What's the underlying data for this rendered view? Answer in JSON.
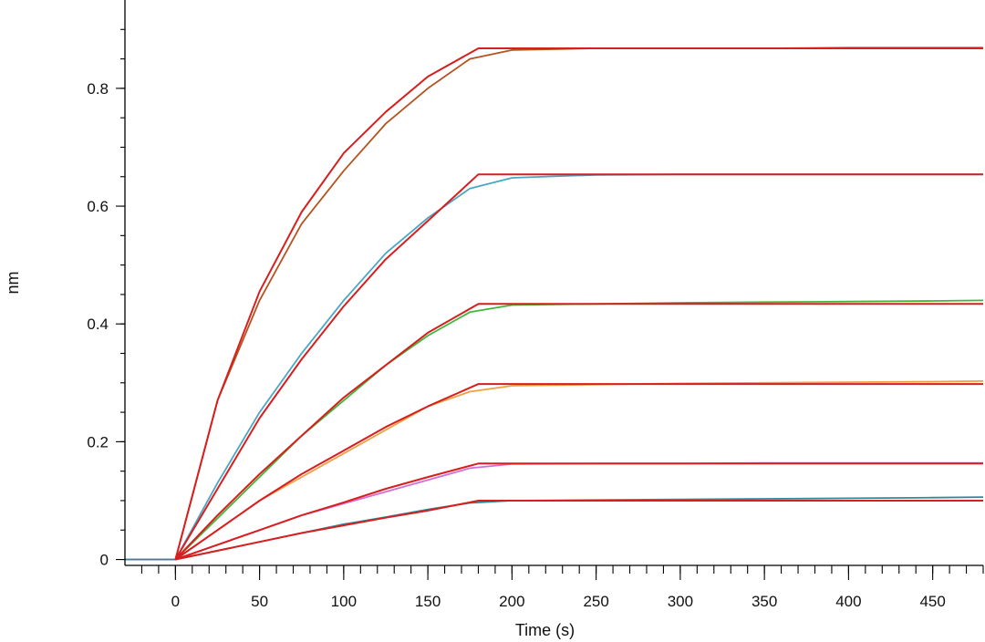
{
  "chart_data": {
    "type": "line",
    "title": "",
    "xlabel": "Time (s)",
    "ylabel": "nm",
    "xlim": [
      -30,
      480
    ],
    "ylim": [
      -0.01,
      0.95
    ],
    "x_ticks": [
      0,
      50,
      100,
      150,
      200,
      250,
      300,
      350,
      400,
      450
    ],
    "x_tick_labels": [
      "0",
      "50",
      "100",
      "150",
      "200",
      "250",
      "300",
      "350",
      "400",
      "450"
    ],
    "y_ticks": [
      0,
      0.2,
      0.4,
      0.6,
      0.8
    ],
    "y_tick_labels": [
      "0",
      "0.2",
      "0.4",
      "0.6",
      "0.8"
    ],
    "grid": false,
    "legend": "none",
    "association_end_s": 180,
    "series": [
      {
        "role": "measured",
        "color": "#b5531f",
        "values": [
          [
            -30,
            0.0
          ],
          [
            0,
            0.0
          ],
          [
            25,
            0.27
          ],
          [
            50,
            0.44
          ],
          [
            75,
            0.57
          ],
          [
            100,
            0.66
          ],
          [
            125,
            0.74
          ],
          [
            150,
            0.8
          ],
          [
            175,
            0.85
          ],
          [
            200,
            0.865
          ],
          [
            250,
            0.868
          ],
          [
            300,
            0.868
          ],
          [
            350,
            0.868
          ],
          [
            400,
            0.869
          ],
          [
            450,
            0.869
          ],
          [
            480,
            0.869
          ]
        ]
      },
      {
        "role": "measured",
        "color": "#4aa6c4",
        "values": [
          [
            -30,
            0.0
          ],
          [
            0,
            0.0
          ],
          [
            25,
            0.13
          ],
          [
            50,
            0.25
          ],
          [
            75,
            0.35
          ],
          [
            100,
            0.44
          ],
          [
            125,
            0.52
          ],
          [
            150,
            0.58
          ],
          [
            175,
            0.63
          ],
          [
            200,
            0.648
          ],
          [
            250,
            0.653
          ],
          [
            300,
            0.654
          ],
          [
            350,
            0.654
          ],
          [
            400,
            0.654
          ],
          [
            450,
            0.654
          ],
          [
            480,
            0.654
          ]
        ]
      },
      {
        "role": "measured",
        "color": "#3fb83a",
        "values": [
          [
            -30,
            0.0
          ],
          [
            0,
            0.0
          ],
          [
            25,
            0.07
          ],
          [
            50,
            0.14
          ],
          [
            75,
            0.21
          ],
          [
            100,
            0.27
          ],
          [
            125,
            0.33
          ],
          [
            150,
            0.38
          ],
          [
            175,
            0.42
          ],
          [
            200,
            0.432
          ],
          [
            250,
            0.434
          ],
          [
            300,
            0.436
          ],
          [
            350,
            0.437
          ],
          [
            400,
            0.438
          ],
          [
            450,
            0.439
          ],
          [
            480,
            0.44
          ]
        ]
      },
      {
        "role": "measured",
        "color": "#f0a040",
        "values": [
          [
            -30,
            0.0
          ],
          [
            0,
            0.0
          ],
          [
            25,
            0.05
          ],
          [
            50,
            0.1
          ],
          [
            75,
            0.14
          ],
          [
            100,
            0.18
          ],
          [
            125,
            0.22
          ],
          [
            150,
            0.26
          ],
          [
            175,
            0.285
          ],
          [
            200,
            0.295
          ],
          [
            250,
            0.297
          ],
          [
            300,
            0.299
          ],
          [
            350,
            0.3
          ],
          [
            400,
            0.301
          ],
          [
            450,
            0.302
          ],
          [
            480,
            0.303
          ]
        ]
      },
      {
        "role": "measured",
        "color": "#d070d8",
        "values": [
          [
            -30,
            0.0
          ],
          [
            0,
            0.0
          ],
          [
            25,
            0.025
          ],
          [
            50,
            0.05
          ],
          [
            75,
            0.075
          ],
          [
            100,
            0.095
          ],
          [
            125,
            0.115
          ],
          [
            150,
            0.135
          ],
          [
            175,
            0.155
          ],
          [
            200,
            0.162
          ],
          [
            250,
            0.163
          ],
          [
            300,
            0.163
          ],
          [
            350,
            0.164
          ],
          [
            400,
            0.164
          ],
          [
            450,
            0.164
          ],
          [
            480,
            0.164
          ]
        ]
      },
      {
        "role": "measured",
        "color": "#2f8a96",
        "values": [
          [
            -30,
            0.0
          ],
          [
            0,
            0.0
          ],
          [
            25,
            0.015
          ],
          [
            50,
            0.03
          ],
          [
            75,
            0.045
          ],
          [
            100,
            0.06
          ],
          [
            125,
            0.072
          ],
          [
            150,
            0.085
          ],
          [
            175,
            0.096
          ],
          [
            200,
            0.1
          ],
          [
            250,
            0.101
          ],
          [
            300,
            0.102
          ],
          [
            350,
            0.103
          ],
          [
            400,
            0.104
          ],
          [
            450,
            0.105
          ],
          [
            480,
            0.106
          ]
        ]
      },
      {
        "role": "fit",
        "color": "#d81e1e",
        "values": [
          [
            0,
            0.0
          ],
          [
            25,
            0.27
          ],
          [
            50,
            0.455
          ],
          [
            75,
            0.59
          ],
          [
            100,
            0.69
          ],
          [
            125,
            0.76
          ],
          [
            150,
            0.82
          ],
          [
            180,
            0.868
          ],
          [
            480,
            0.868
          ]
        ]
      },
      {
        "role": "fit",
        "color": "#d81e1e",
        "values": [
          [
            0,
            0.0
          ],
          [
            25,
            0.12
          ],
          [
            50,
            0.24
          ],
          [
            75,
            0.34
          ],
          [
            100,
            0.43
          ],
          [
            125,
            0.51
          ],
          [
            150,
            0.575
          ],
          [
            180,
            0.654
          ],
          [
            480,
            0.654
          ]
        ]
      },
      {
        "role": "fit",
        "color": "#d81e1e",
        "values": [
          [
            0,
            0.0
          ],
          [
            25,
            0.075
          ],
          [
            50,
            0.145
          ],
          [
            75,
            0.21
          ],
          [
            100,
            0.275
          ],
          [
            125,
            0.33
          ],
          [
            150,
            0.385
          ],
          [
            180,
            0.434
          ],
          [
            480,
            0.434
          ]
        ]
      },
      {
        "role": "fit",
        "color": "#d81e1e",
        "values": [
          [
            0,
            0.0
          ],
          [
            25,
            0.05
          ],
          [
            50,
            0.1
          ],
          [
            75,
            0.145
          ],
          [
            100,
            0.185
          ],
          [
            125,
            0.225
          ],
          [
            150,
            0.26
          ],
          [
            180,
            0.298
          ],
          [
            480,
            0.298
          ]
        ]
      },
      {
        "role": "fit",
        "color": "#d81e1e",
        "values": [
          [
            0,
            0.0
          ],
          [
            25,
            0.025
          ],
          [
            50,
            0.05
          ],
          [
            75,
            0.075
          ],
          [
            100,
            0.097
          ],
          [
            125,
            0.12
          ],
          [
            150,
            0.14
          ],
          [
            180,
            0.163
          ],
          [
            480,
            0.163
          ]
        ]
      },
      {
        "role": "fit",
        "color": "#d81e1e",
        "values": [
          [
            0,
            0.0
          ],
          [
            25,
            0.015
          ],
          [
            50,
            0.03
          ],
          [
            75,
            0.045
          ],
          [
            100,
            0.058
          ],
          [
            125,
            0.071
          ],
          [
            150,
            0.083
          ],
          [
            180,
            0.1
          ],
          [
            480,
            0.1
          ]
        ]
      }
    ]
  }
}
